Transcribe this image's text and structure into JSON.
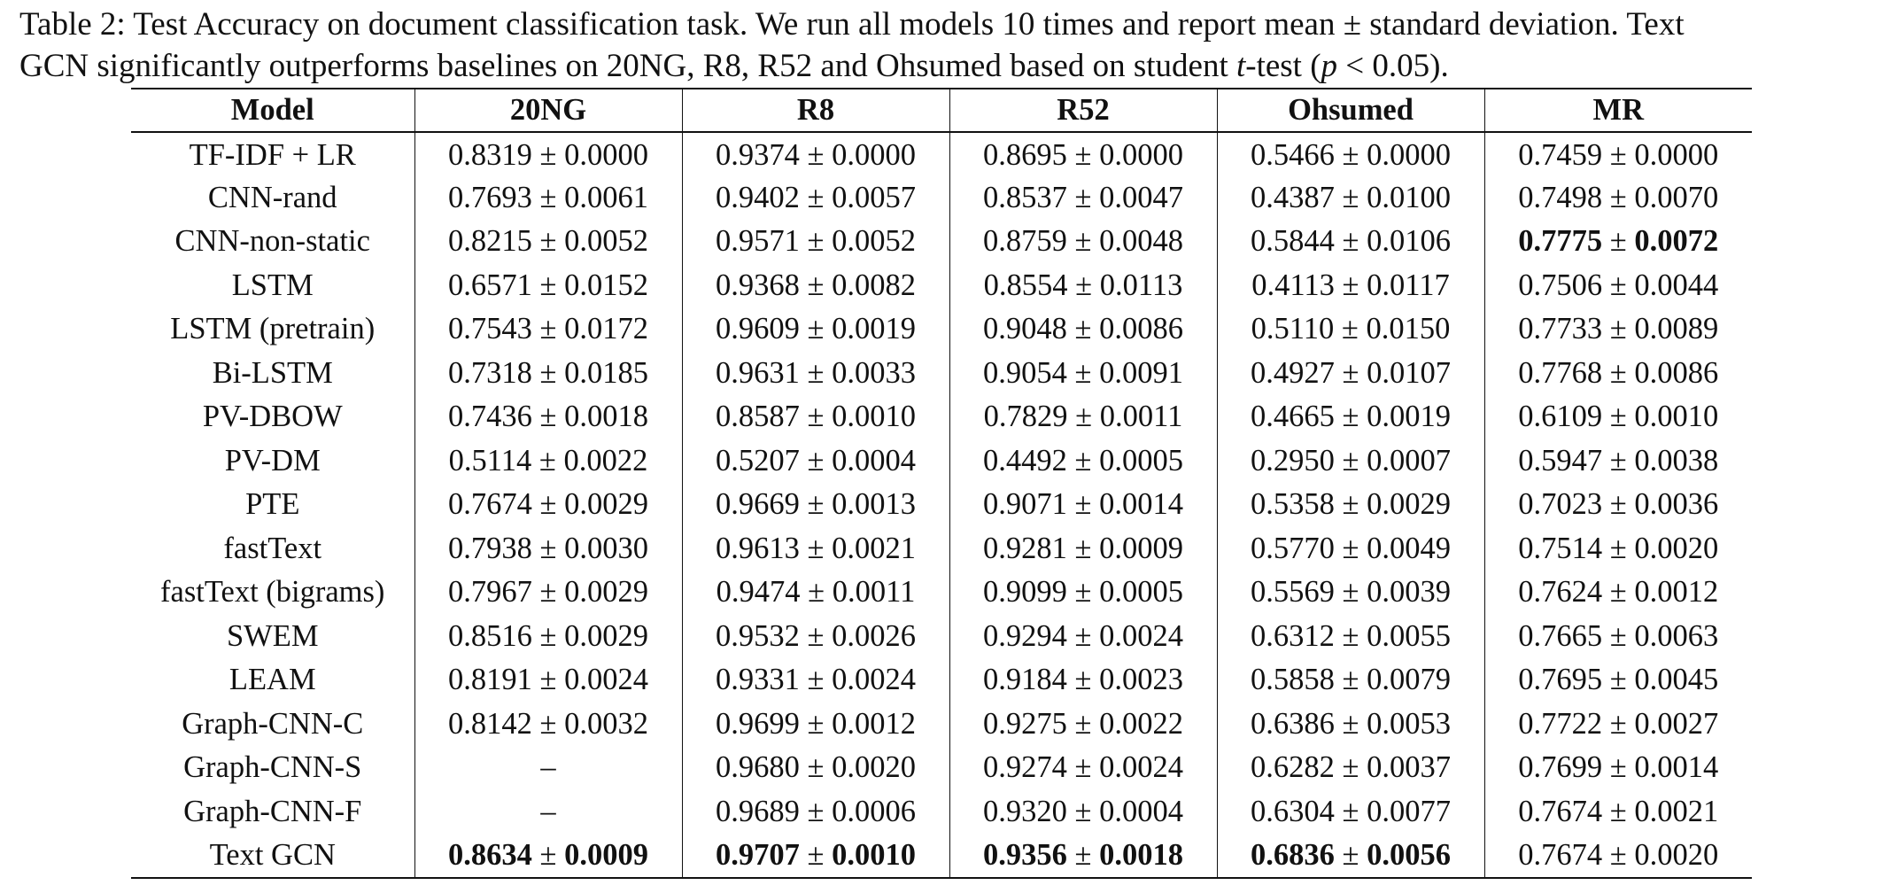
{
  "caption": {
    "line1": "Table 2: Test Accuracy on document classification task. We run all models 10 times and report mean ± standard deviation. Text",
    "line2_a": "GCN significantly outperforms baselines on 20NG, R8, R52 and Ohsumed based on student ",
    "line2_t": "t",
    "line2_b": "-test (",
    "line2_p": "p",
    "line2_c": " < 0.05)."
  },
  "table": {
    "headers": [
      "Model",
      "20NG",
      "R8",
      "R52",
      "Ohsumed",
      "MR"
    ],
    "rows": [
      {
        "model": "TF-IDF + LR",
        "cells": [
          {
            "mean": "0.8319",
            "std": "0.0000",
            "bold": false
          },
          {
            "mean": "0.9374",
            "std": "0.0000",
            "bold": false
          },
          {
            "mean": "0.8695",
            "std": "0.0000",
            "bold": false
          },
          {
            "mean": "0.5466",
            "std": "0.0000",
            "bold": false
          },
          {
            "mean": "0.7459",
            "std": "0.0000",
            "bold": false
          }
        ]
      },
      {
        "model": "CNN-rand",
        "cells": [
          {
            "mean": "0.7693",
            "std": "0.0061",
            "bold": false
          },
          {
            "mean": "0.9402",
            "std": "0.0057",
            "bold": false
          },
          {
            "mean": "0.8537",
            "std": "0.0047",
            "bold": false
          },
          {
            "mean": "0.4387",
            "std": "0.0100",
            "bold": false
          },
          {
            "mean": "0.7498",
            "std": "0.0070",
            "bold": false
          }
        ]
      },
      {
        "model": "CNN-non-static",
        "cells": [
          {
            "mean": "0.8215",
            "std": "0.0052",
            "bold": false
          },
          {
            "mean": "0.9571",
            "std": "0.0052",
            "bold": false
          },
          {
            "mean": "0.8759",
            "std": "0.0048",
            "bold": false
          },
          {
            "mean": "0.5844",
            "std": "0.0106",
            "bold": false
          },
          {
            "mean": "0.7775",
            "std": "0.0072",
            "bold": true
          }
        ]
      },
      {
        "model": "LSTM",
        "cells": [
          {
            "mean": "0.6571",
            "std": "0.0152",
            "bold": false
          },
          {
            "mean": "0.9368",
            "std": "0.0082",
            "bold": false
          },
          {
            "mean": "0.8554",
            "std": "0.0113",
            "bold": false
          },
          {
            "mean": "0.4113",
            "std": "0.0117",
            "bold": false
          },
          {
            "mean": "0.7506",
            "std": "0.0044",
            "bold": false
          }
        ]
      },
      {
        "model": "LSTM (pretrain)",
        "cells": [
          {
            "mean": "0.7543",
            "std": "0.0172",
            "bold": false
          },
          {
            "mean": "0.9609",
            "std": "0.0019",
            "bold": false
          },
          {
            "mean": "0.9048",
            "std": "0.0086",
            "bold": false
          },
          {
            "mean": "0.5110",
            "std": "0.0150",
            "bold": false
          },
          {
            "mean": "0.7733",
            "std": "0.0089",
            "bold": false
          }
        ]
      },
      {
        "model": "Bi-LSTM",
        "cells": [
          {
            "mean": "0.7318",
            "std": "0.0185",
            "bold": false
          },
          {
            "mean": "0.9631",
            "std": "0.0033",
            "bold": false
          },
          {
            "mean": "0.9054",
            "std": "0.0091",
            "bold": false
          },
          {
            "mean": "0.4927",
            "std": "0.0107",
            "bold": false
          },
          {
            "mean": "0.7768",
            "std": "0.0086",
            "bold": false
          }
        ]
      },
      {
        "model": "PV-DBOW",
        "cells": [
          {
            "mean": "0.7436",
            "std": "0.0018",
            "bold": false
          },
          {
            "mean": "0.8587",
            "std": "0.0010",
            "bold": false
          },
          {
            "mean": "0.7829",
            "std": "0.0011",
            "bold": false
          },
          {
            "mean": "0.4665",
            "std": "0.0019",
            "bold": false
          },
          {
            "mean": "0.6109",
            "std": "0.0010",
            "bold": false
          }
        ]
      },
      {
        "model": "PV-DM",
        "cells": [
          {
            "mean": "0.5114",
            "std": "0.0022",
            "bold": false
          },
          {
            "mean": "0.5207",
            "std": "0.0004",
            "bold": false
          },
          {
            "mean": "0.4492",
            "std": "0.0005",
            "bold": false
          },
          {
            "mean": "0.2950",
            "std": "0.0007",
            "bold": false
          },
          {
            "mean": "0.5947",
            "std": "0.0038",
            "bold": false
          }
        ]
      },
      {
        "model": "PTE",
        "cells": [
          {
            "mean": "0.7674",
            "std": "0.0029",
            "bold": false
          },
          {
            "mean": "0.9669",
            "std": "0.0013",
            "bold": false
          },
          {
            "mean": "0.9071",
            "std": "0.0014",
            "bold": false
          },
          {
            "mean": "0.5358",
            "std": "0.0029",
            "bold": false
          },
          {
            "mean": "0.7023",
            "std": "0.0036",
            "bold": false
          }
        ]
      },
      {
        "model": "fastText",
        "cells": [
          {
            "mean": "0.7938",
            "std": "0.0030",
            "bold": false
          },
          {
            "mean": "0.9613",
            "std": "0.0021",
            "bold": false
          },
          {
            "mean": "0.9281",
            "std": "0.0009",
            "bold": false
          },
          {
            "mean": "0.5770",
            "std": "0.0049",
            "bold": false
          },
          {
            "mean": "0.7514",
            "std": "0.0020",
            "bold": false
          }
        ]
      },
      {
        "model": "fastText (bigrams)",
        "cells": [
          {
            "mean": "0.7967",
            "std": "0.0029",
            "bold": false
          },
          {
            "mean": "0.9474",
            "std": "0.0011",
            "bold": false
          },
          {
            "mean": "0.9099",
            "std": "0.0005",
            "bold": false
          },
          {
            "mean": "0.5569",
            "std": "0.0039",
            "bold": false
          },
          {
            "mean": "0.7624",
            "std": "0.0012",
            "bold": false
          }
        ]
      },
      {
        "model": "SWEM",
        "cells": [
          {
            "mean": "0.8516",
            "std": "0.0029",
            "bold": false
          },
          {
            "mean": "0.9532",
            "std": "0.0026",
            "bold": false
          },
          {
            "mean": "0.9294",
            "std": "0.0024",
            "bold": false
          },
          {
            "mean": "0.6312",
            "std": "0.0055",
            "bold": false
          },
          {
            "mean": "0.7665",
            "std": "0.0063",
            "bold": false
          }
        ]
      },
      {
        "model": "LEAM",
        "cells": [
          {
            "mean": "0.8191",
            "std": "0.0024",
            "bold": false
          },
          {
            "mean": "0.9331",
            "std": "0.0024",
            "bold": false
          },
          {
            "mean": "0.9184",
            "std": "0.0023",
            "bold": false
          },
          {
            "mean": "0.5858",
            "std": "0.0079",
            "bold": false
          },
          {
            "mean": "0.7695",
            "std": "0.0045",
            "bold": false
          }
        ]
      },
      {
        "model": "Graph-CNN-C",
        "cells": [
          {
            "mean": "0.8142",
            "std": "0.0032",
            "bold": false
          },
          {
            "mean": "0.9699",
            "std": "0.0012",
            "bold": false
          },
          {
            "mean": "0.9275",
            "std": "0.0022",
            "bold": false
          },
          {
            "mean": "0.6386",
            "std": "0.0053",
            "bold": false
          },
          {
            "mean": "0.7722",
            "std": "0.0027",
            "bold": false
          }
        ]
      },
      {
        "model": "Graph-CNN-S",
        "cells": [
          {
            "dash": "–"
          },
          {
            "mean": "0.9680",
            "std": "0.0020",
            "bold": false
          },
          {
            "mean": "0.9274",
            "std": "0.0024",
            "bold": false
          },
          {
            "mean": "0.6282",
            "std": "0.0037",
            "bold": false
          },
          {
            "mean": "0.7699",
            "std": "0.0014",
            "bold": false
          }
        ]
      },
      {
        "model": "Graph-CNN-F",
        "cells": [
          {
            "dash": "–"
          },
          {
            "mean": "0.9689",
            "std": "0.0006",
            "bold": false
          },
          {
            "mean": "0.9320",
            "std": "0.0004",
            "bold": false
          },
          {
            "mean": "0.6304",
            "std": "0.0077",
            "bold": false
          },
          {
            "mean": "0.7674",
            "std": "0.0021",
            "bold": false
          }
        ]
      },
      {
        "model": "Text GCN",
        "cells": [
          {
            "mean": "0.8634",
            "std": "0.0009",
            "bold": true
          },
          {
            "mean": "0.9707",
            "std": "0.0010",
            "bold": true
          },
          {
            "mean": "0.9356",
            "std": "0.0018",
            "bold": true
          },
          {
            "mean": "0.6836",
            "std": "0.0056",
            "bold": true
          },
          {
            "mean": "0.7674",
            "std": "0.0020",
            "bold": false
          }
        ]
      }
    ]
  }
}
